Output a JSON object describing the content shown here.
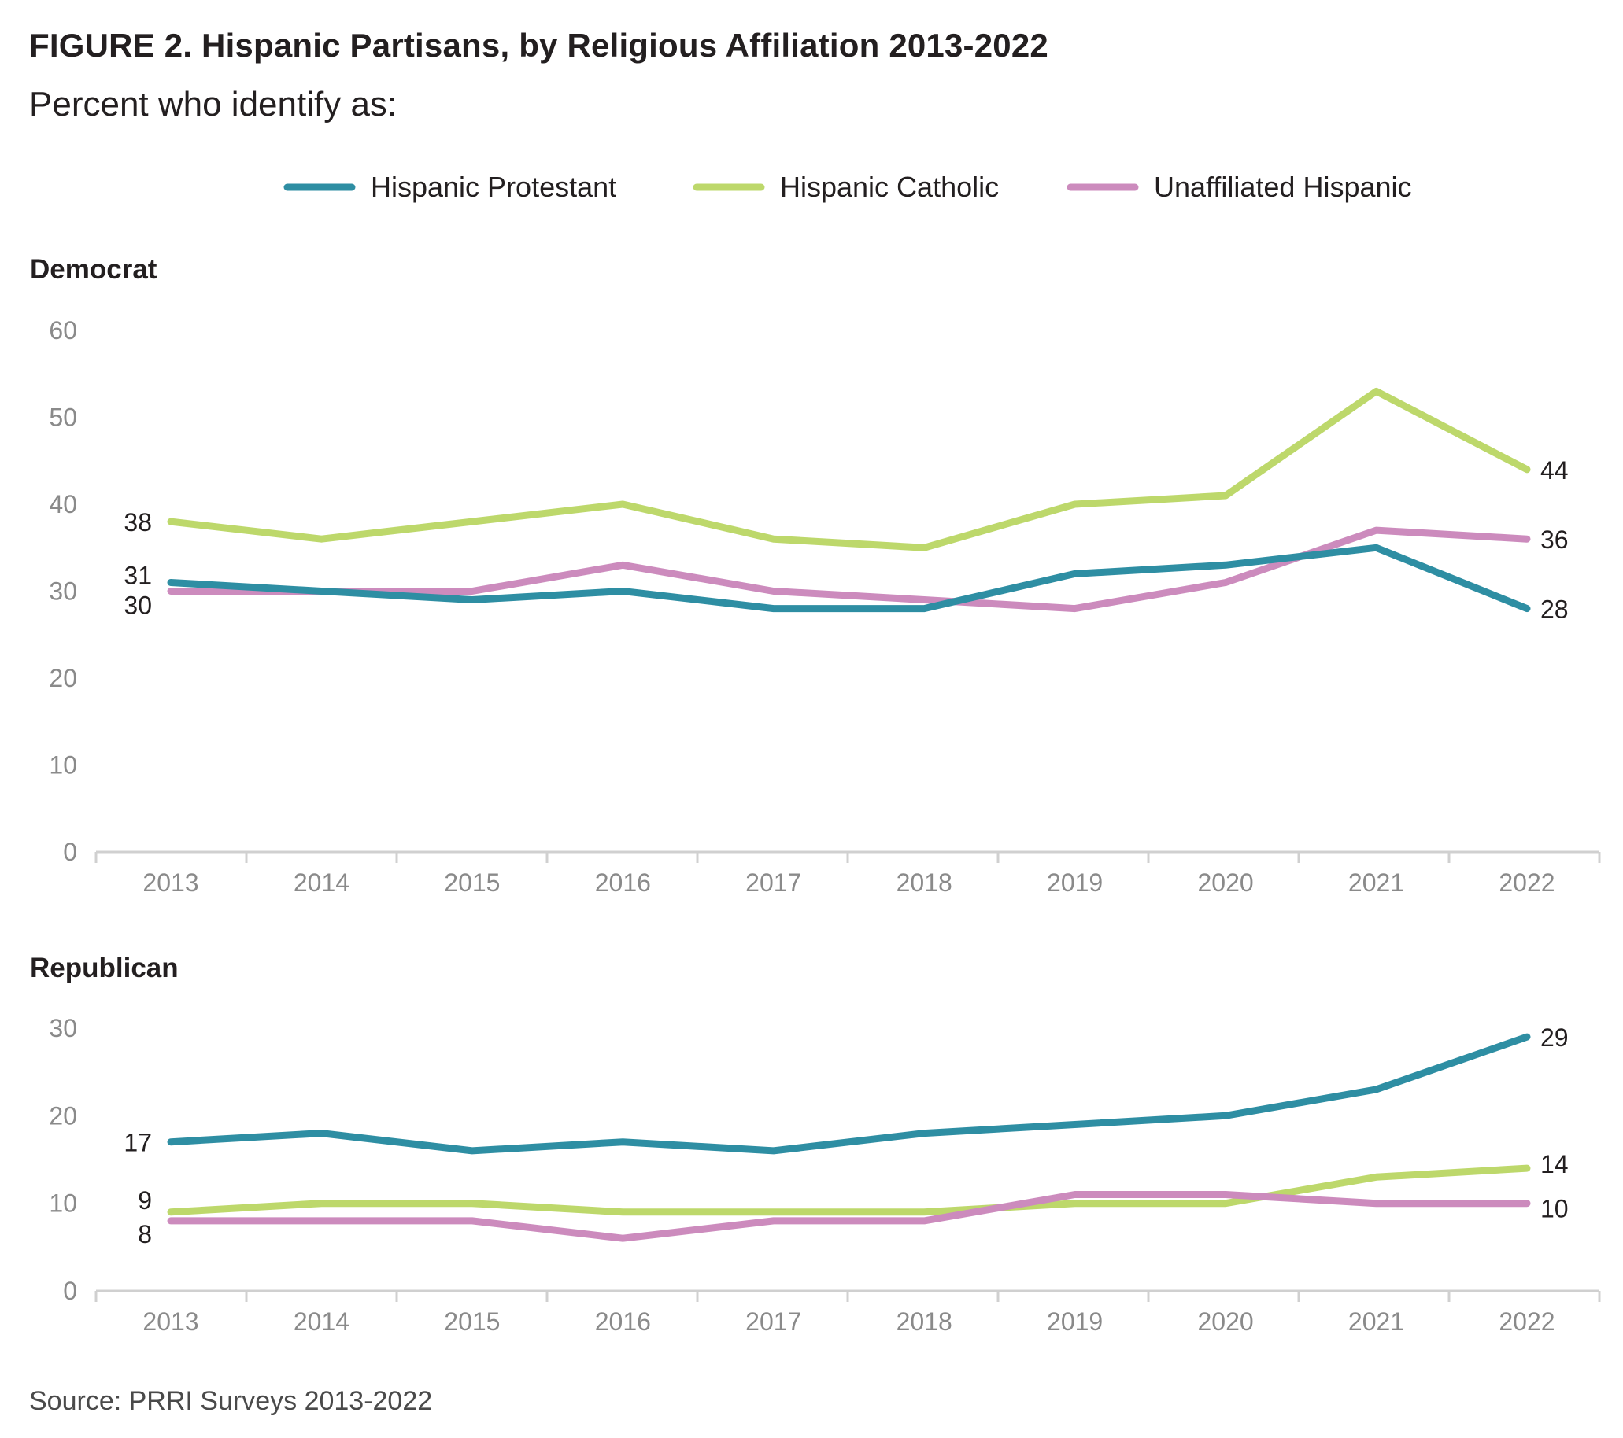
{
  "title": "FIGURE 2. Hispanic Partisans, by Religious Affiliation 2013-2022",
  "subtitle": "Percent who identify as:",
  "source": "Source: PRRI Surveys 2013-2022",
  "colors": {
    "protestant": "#2e8ea3",
    "catholic": "#bdd86b",
    "unaffiliated": "#cc8bbd"
  },
  "legend": [
    {
      "name": "Hispanic Protestant",
      "color": "#2e8ea3"
    },
    {
      "name": "Hispanic Catholic",
      "color": "#bdd86b"
    },
    {
      "name": "Unaffiliated Hispanic",
      "color": "#cc8bbd"
    }
  ],
  "chart_data": [
    {
      "type": "line",
      "title": "Democrat",
      "x": [
        "2013",
        "2014",
        "2015",
        "2016",
        "2017",
        "2018",
        "2019",
        "2020",
        "2021",
        "2022"
      ],
      "ylim": [
        0,
        60
      ],
      "yticks": [
        0,
        10,
        20,
        30,
        40,
        50,
        60
      ],
      "grid": false,
      "legend_position": "top-center",
      "series": [
        {
          "name": "Hispanic Protestant",
          "color": "#2e8ea3",
          "values": [
            31,
            30,
            29,
            30,
            28,
            28,
            32,
            33,
            35,
            28
          ]
        },
        {
          "name": "Hispanic Catholic",
          "color": "#bdd86b",
          "values": [
            38,
            36,
            38,
            40,
            36,
            35,
            40,
            41,
            53,
            44
          ]
        },
        {
          "name": "Unaffiliated Hispanic",
          "color": "#cc8bbd",
          "values": [
            30,
            30,
            30,
            33,
            30,
            29,
            28,
            31,
            37,
            36
          ]
        }
      ],
      "labels_start": [
        {
          "text": "38",
          "value": 38
        },
        {
          "text": "31",
          "value": 31
        },
        {
          "text": "30",
          "value": 30
        }
      ],
      "labels_end": [
        {
          "text": "44",
          "value": 44
        },
        {
          "text": "36",
          "value": 36
        },
        {
          "text": "28",
          "value": 28
        }
      ]
    },
    {
      "type": "line",
      "title": "Republican",
      "x": [
        "2013",
        "2014",
        "2015",
        "2016",
        "2017",
        "2018",
        "2019",
        "2020",
        "2021",
        "2022"
      ],
      "ylim": [
        0,
        30
      ],
      "yticks": [
        0,
        10,
        20,
        30
      ],
      "grid": false,
      "series": [
        {
          "name": "Hispanic Protestant",
          "color": "#2e8ea3",
          "values": [
            17,
            18,
            16,
            17,
            16,
            18,
            19,
            20,
            23,
            29
          ]
        },
        {
          "name": "Hispanic Catholic",
          "color": "#bdd86b",
          "values": [
            9,
            10,
            10,
            9,
            9,
            9,
            10,
            10,
            13,
            14
          ]
        },
        {
          "name": "Unaffiliated Hispanic",
          "color": "#cc8bbd",
          "values": [
            8,
            8,
            8,
            6,
            8,
            8,
            11,
            11,
            10,
            10
          ]
        }
      ],
      "labels_start": [
        {
          "text": "17",
          "value": 17
        },
        {
          "text": "9",
          "value": 9
        },
        {
          "text": "8",
          "value": 8
        }
      ],
      "labels_end": [
        {
          "text": "29",
          "value": 29
        },
        {
          "text": "14",
          "value": 14
        },
        {
          "text": "10",
          "value": 10
        }
      ]
    }
  ]
}
